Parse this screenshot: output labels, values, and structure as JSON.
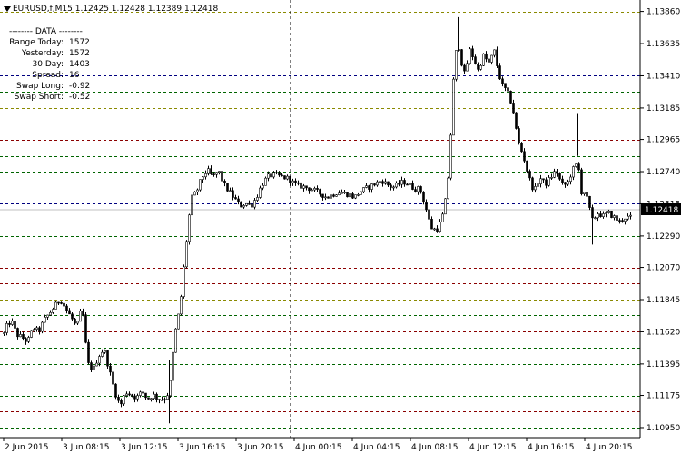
{
  "header": {
    "symbol_text": "EURUSD,f,M15  1.12425 1.12428 1.12389 1.12418"
  },
  "data_panel": {
    "title": "--------  DATA  --------",
    "rows": [
      {
        "label": "Range Today:",
        "value": "1572"
      },
      {
        "label": "Yesterday:",
        "value": "1572"
      },
      {
        "label": "30 Day:",
        "value": "1403"
      },
      {
        "label": "Spread:",
        "value": "16"
      },
      {
        "label": "Swap Long:",
        "value": "-0.92"
      },
      {
        "label": "Swap Short:",
        "value": "-0.52"
      }
    ]
  },
  "price_axis": {
    "labels": [
      "1.13860",
      "1.13635",
      "1.13410",
      "1.13185",
      "1.12965",
      "1.12740",
      "1.12515",
      "1.12290",
      "1.12070",
      "1.11845",
      "1.11620",
      "1.11395",
      "1.11175",
      "1.10950"
    ],
    "current_price": "1.12418"
  },
  "time_axis": {
    "labels": [
      "2 Jun 2015",
      "3 Jun 08:15",
      "3 Jun 12:15",
      "3 Jun 16:15",
      "3 Jun 20:15",
      "4 Jun 00:15",
      "4 Jun 04:15",
      "4 Jun 08:15",
      "4 Jun 12:15",
      "4 Jun 16:15",
      "4 Jun 20:15"
    ]
  },
  "levels": [
    {
      "price": 1.1386,
      "color": "#8a8a00"
    },
    {
      "price": 1.13635,
      "color": "#006400"
    },
    {
      "price": 1.1341,
      "color": "#000080"
    },
    {
      "price": 1.133,
      "color": "#006400"
    },
    {
      "price": 1.13185,
      "color": "#8a8a00"
    },
    {
      "price": 1.12965,
      "color": "#8b0000"
    },
    {
      "price": 1.1285,
      "color": "#006400"
    },
    {
      "price": 1.1274,
      "color": "#006400"
    },
    {
      "price": 1.12515,
      "color": "#000080"
    },
    {
      "price": 1.1229,
      "color": "#006400"
    },
    {
      "price": 1.1218,
      "color": "#8a8a00"
    },
    {
      "price": 1.1207,
      "color": "#8b0000"
    },
    {
      "price": 1.1196,
      "color": "#8b0000"
    },
    {
      "price": 1.11845,
      "color": "#8a8a00"
    },
    {
      "price": 1.11735,
      "color": "#006400"
    },
    {
      "price": 1.1162,
      "color": "#8b0000"
    },
    {
      "price": 1.1151,
      "color": "#006400"
    },
    {
      "price": 1.11395,
      "color": "#006400"
    },
    {
      "price": 1.11285,
      "color": "#006400"
    },
    {
      "price": 1.11175,
      "color": "#006400"
    },
    {
      "price": 1.11065,
      "color": "#8b0000"
    },
    {
      "price": 1.1095,
      "color": "#006400"
    }
  ],
  "chart_data": {
    "type": "candlestick",
    "ylim": [
      1.1088,
      1.1394
    ],
    "close_path": [
      [
        0,
        1.1152
      ],
      [
        6,
        1.1165
      ],
      [
        12,
        1.117
      ],
      [
        18,
        1.116
      ],
      [
        24,
        1.1158
      ],
      [
        30,
        1.1155
      ],
      [
        36,
        1.1165
      ],
      [
        42,
        1.1162
      ],
      [
        48,
        1.117
      ],
      [
        54,
        1.1175
      ],
      [
        60,
        1.118
      ],
      [
        66,
        1.1185
      ],
      [
        72,
        1.1178
      ],
      [
        78,
        1.1172
      ],
      [
        84,
        1.1165
      ],
      [
        90,
        1.118
      ],
      [
        96,
        1.114
      ],
      [
        102,
        1.1135
      ],
      [
        108,
        1.1145
      ],
      [
        114,
        1.115
      ],
      [
        120,
        1.1135
      ],
      [
        126,
        1.112
      ],
      [
        132,
        1.111
      ],
      [
        138,
        1.112
      ],
      [
        144,
        1.1118
      ],
      [
        150,
        1.1116
      ],
      [
        156,
        1.112
      ],
      [
        162,
        1.1115
      ],
      [
        168,
        1.1118
      ],
      [
        174,
        1.1115
      ],
      [
        180,
        1.1115
      ],
      [
        186,
        1.112
      ],
      [
        192,
        1.116
      ],
      [
        198,
        1.118
      ],
      [
        204,
        1.122
      ],
      [
        210,
        1.1255
      ],
      [
        216,
        1.126
      ],
      [
        222,
        1.127
      ],
      [
        228,
        1.1275
      ],
      [
        234,
        1.127
      ],
      [
        240,
        1.1275
      ],
      [
        246,
        1.1265
      ],
      [
        252,
        1.126
      ],
      [
        258,
        1.1255
      ],
      [
        264,
        1.125
      ],
      [
        270,
        1.1252
      ],
      [
        276,
        1.125
      ],
      [
        282,
        1.1256
      ],
      [
        288,
        1.1265
      ],
      [
        294,
        1.127
      ],
      [
        300,
        1.1272
      ],
      [
        306,
        1.1271
      ],
      [
        312,
        1.127
      ],
      [
        318,
        1.1269
      ],
      [
        324,
        1.1265
      ],
      [
        330,
        1.1264
      ],
      [
        336,
        1.1263
      ],
      [
        342,
        1.1262
      ],
      [
        348,
        1.126
      ],
      [
        354,
        1.1258
      ],
      [
        360,
        1.1256
      ],
      [
        366,
        1.1258
      ],
      [
        372,
        1.126
      ],
      [
        378,
        1.1259
      ],
      [
        384,
        1.1258
      ],
      [
        390,
        1.1256
      ],
      [
        396,
        1.126
      ],
      [
        402,
        1.1262
      ],
      [
        408,
        1.1264
      ],
      [
        414,
        1.1266
      ],
      [
        420,
        1.1268
      ],
      [
        426,
        1.1265
      ],
      [
        432,
        1.1263
      ],
      [
        438,
        1.1265
      ],
      [
        444,
        1.1267
      ],
      [
        450,
        1.1265
      ],
      [
        456,
        1.1262
      ],
      [
        462,
        1.1262
      ],
      [
        468,
        1.125
      ],
      [
        474,
        1.1235
      ],
      [
        480,
        1.1233
      ],
      [
        486,
        1.124
      ],
      [
        492,
        1.126
      ],
      [
        496,
        1.13
      ],
      [
        500,
        1.135
      ],
      [
        504,
        1.1365
      ],
      [
        508,
        1.135
      ],
      [
        512,
        1.134
      ],
      [
        516,
        1.136
      ],
      [
        520,
        1.1355
      ],
      [
        526,
        1.1345
      ],
      [
        532,
        1.1355
      ],
      [
        538,
        1.135
      ],
      [
        544,
        1.1358
      ],
      [
        548,
        1.1345
      ],
      [
        552,
        1.1335
      ],
      [
        558,
        1.133
      ],
      [
        564,
        1.132
      ],
      [
        570,
        1.1295
      ],
      [
        576,
        1.1285
      ],
      [
        582,
        1.127
      ],
      [
        588,
        1.126
      ],
      [
        594,
        1.127
      ],
      [
        600,
        1.1265
      ],
      [
        606,
        1.127
      ],
      [
        612,
        1.1275
      ],
      [
        618,
        1.1265
      ],
      [
        624,
        1.1265
      ],
      [
        630,
        1.1275
      ],
      [
        636,
        1.128
      ],
      [
        640,
        1.126
      ],
      [
        644,
        1.126
      ],
      [
        648,
        1.125
      ],
      [
        652,
        1.124
      ],
      [
        658,
        1.1245
      ],
      [
        664,
        1.1243
      ],
      [
        670,
        1.1245
      ],
      [
        676,
        1.1242
      ],
      [
        682,
        1.1239
      ],
      [
        688,
        1.1242
      ],
      [
        694,
        1.12418
      ]
    ]
  }
}
